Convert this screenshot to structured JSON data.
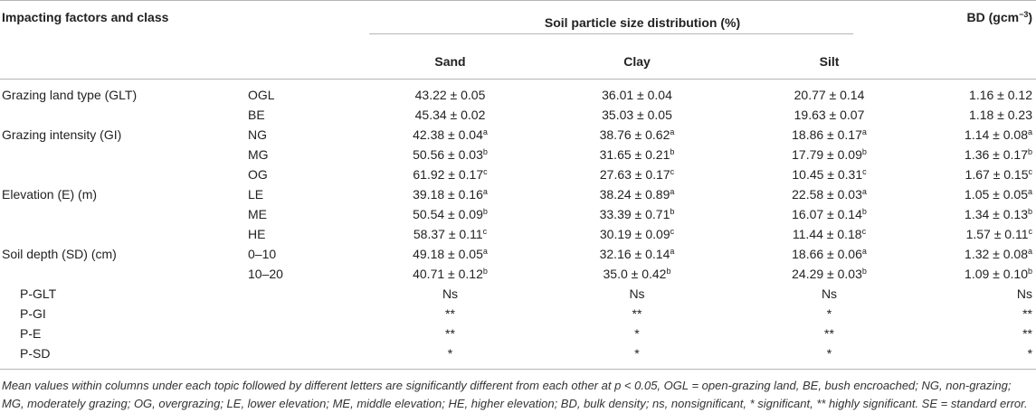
{
  "header": {
    "factor_label": "Impacting factors and class",
    "psd_label": "Soil particle size distribution (%)",
    "bd_label": "BD (gcm",
    "bd_exp": "−3",
    "bd_close": ")",
    "sand": "Sand",
    "clay": "Clay",
    "silt": "Silt"
  },
  "rows": [
    {
      "factor": "Grazing land type (GLT)",
      "cls": "OGL",
      "sand": "43.22 ± 0.05",
      "sand_sup": "",
      "clay": "36.01 ± 0.04",
      "clay_sup": "",
      "silt": "20.77 ± 0.14",
      "silt_sup": "",
      "bd": "1.16 ± 0.12",
      "bd_sup": ""
    },
    {
      "factor": "",
      "cls": "BE",
      "sand": "45.34 ± 0.02",
      "sand_sup": "",
      "clay": "35.03 ± 0.05",
      "clay_sup": "",
      "silt": "19.63 ± 0.07",
      "silt_sup": "",
      "bd": "1.18 ± 0.23",
      "bd_sup": ""
    },
    {
      "factor": "Grazing intensity (GI)",
      "cls": "NG",
      "sand": "42.38 ± 0.04",
      "sand_sup": "a",
      "clay": "38.76 ± 0.62",
      "clay_sup": "a",
      "silt": "18.86 ± 0.17",
      "silt_sup": "a",
      "bd": "1.14 ± 0.08",
      "bd_sup": "a"
    },
    {
      "factor": "",
      "cls": "MG",
      "sand": "50.56 ± 0.03",
      "sand_sup": "b",
      "clay": "31.65 ± 0.21",
      "clay_sup": "b",
      "silt": "17.79 ± 0.09",
      "silt_sup": "b",
      "bd": "1.36 ± 0.17",
      "bd_sup": "b"
    },
    {
      "factor": "",
      "cls": "OG",
      "sand": "61.92 ± 0.17",
      "sand_sup": "c",
      "clay": "27.63 ± 0.17",
      "clay_sup": "c",
      "silt": "10.45 ± 0.31",
      "silt_sup": "c",
      "bd": "1.67 ± 0.15",
      "bd_sup": "c"
    },
    {
      "factor": "Elevation (E) (m)",
      "cls": "LE",
      "sand": "39.18 ± 0.16",
      "sand_sup": "a",
      "clay": "38.24 ± 0.89",
      "clay_sup": "a",
      "silt": "22.58 ± 0.03",
      "silt_sup": "a",
      "bd": "1.05 ± 0.05",
      "bd_sup": "a"
    },
    {
      "factor": "",
      "cls": "ME",
      "sand": "50.54 ± 0.09",
      "sand_sup": "b",
      "clay": "33.39 ± 0.71",
      "clay_sup": "b",
      "silt": "16.07 ± 0.14",
      "silt_sup": "b",
      "bd": "1.34 ± 0.13",
      "bd_sup": "b"
    },
    {
      "factor": "",
      "cls": "HE",
      "sand": "58.37 ± 0.11",
      "sand_sup": "c",
      "clay": "30.19 ± 0.09",
      "clay_sup": "c",
      "silt": "11.44 ± 0.18",
      "silt_sup": "c",
      "bd": "1.57 ± 0.11",
      "bd_sup": "c"
    },
    {
      "factor": "Soil depth (SD) (cm)",
      "cls": "0–10",
      "sand": "49.18 ± 0.05",
      "sand_sup": "a",
      "clay": "32.16 ± 0.14",
      "clay_sup": "a",
      "silt": "18.66 ± 0.06",
      "silt_sup": "a",
      "bd": "1.32 ± 0.08",
      "bd_sup": "a"
    },
    {
      "factor": "",
      "cls": "10–20",
      "sand": "40.71 ± 0.12",
      "sand_sup": "b",
      "clay": "35.0 ± 0.42",
      "clay_sup": "b",
      "silt": "24.29 ± 0.03",
      "silt_sup": "b",
      "bd": "1.09 ± 0.10",
      "bd_sup": "b"
    }
  ],
  "p_rows": [
    {
      "label": "P-GLT",
      "sand": "Ns",
      "clay": "Ns",
      "silt": "Ns",
      "bd": "Ns"
    },
    {
      "label": "P-GI",
      "sand": "**",
      "clay": "**",
      "silt": "*",
      "bd": "**"
    },
    {
      "label": "P-E",
      "sand": "**",
      "clay": "*",
      "silt": "**",
      "bd": "**"
    },
    {
      "label": "P-SD",
      "sand": "*",
      "clay": "*",
      "silt": "*",
      "bd": "*"
    }
  ],
  "footnote": "Mean values within columns under each topic followed by different letters are significantly different from each other at p < 0.05, OGL = open-grazing land, BE, bush encroached; NG, non-grazing; MG, moderately grazing; OG, overgrazing; LE, lower elevation; ME, middle elevation; HE, higher elevation; BD, bulk density; ns, nonsignificant, * significant, ** highly significant. SE = standard error."
}
